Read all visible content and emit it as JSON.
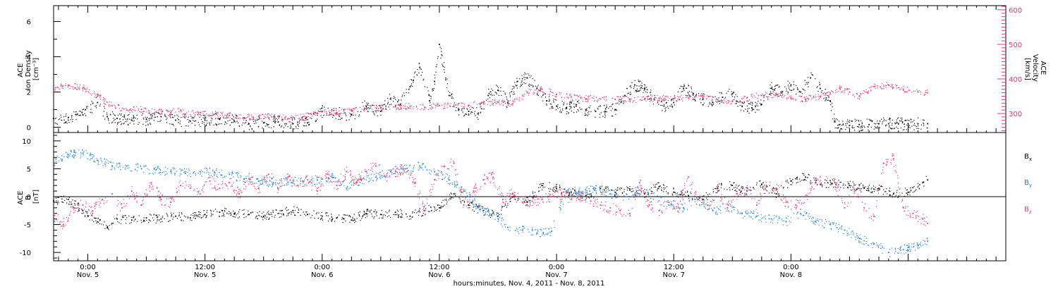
{
  "colors": {
    "density": "#000000",
    "velocity": "#e8386a",
    "bx": "#000000",
    "by": "#1c7fe0",
    "bz": "#e8386a",
    "axis": "#000000"
  },
  "chart_data": [
    {
      "type": "scatter",
      "panel": "top",
      "left_axis_title": [
        "ACE",
        "Ion Density",
        "[cm⁻³]"
      ],
      "right_axis_title": [
        "ACE",
        "Velocity",
        "[km/s]"
      ],
      "left_ylim": [
        -0.3,
        6.9
      ],
      "left_ticks": [
        0,
        2,
        4,
        6
      ],
      "left_tick_labels": [
        "0",
        "2",
        "4",
        "6"
      ],
      "right_ylim": [
        245,
        612
      ],
      "right_ticks": [
        300,
        400,
        500,
        600
      ],
      "right_tick_labels": [
        "300",
        "400",
        "500",
        "600"
      ],
      "xlim_hours": [
        -3.5,
        94
      ],
      "series": [
        {
          "key": "density",
          "axis": "left",
          "x": [
            -3.5,
            -2,
            -0.5,
            1,
            2,
            3,
            4.5,
            6,
            7.5,
            9,
            10.5,
            12,
            13.5,
            15,
            16.5,
            18,
            19.5,
            21,
            22.5,
            24,
            25.5,
            27,
            28.5,
            30,
            31,
            32,
            33,
            34,
            35,
            35.5,
            36,
            37,
            38,
            39,
            40,
            41,
            42,
            43,
            44,
            45,
            46,
            47,
            48,
            49,
            50,
            51,
            52,
            53,
            54,
            55,
            56,
            57,
            58,
            59,
            60,
            61,
            62,
            63,
            64,
            65,
            66,
            67,
            68,
            69,
            70,
            71,
            72,
            73,
            74,
            75,
            76,
            76.5,
            77,
            78,
            79,
            80,
            81,
            82,
            83,
            84,
            85,
            86
          ],
          "y": [
            0.5,
            0.55,
            0.7,
            1.4,
            0.6,
            0.5,
            0.4,
            0.45,
            0.6,
            0.4,
            0.35,
            0.4,
            0.45,
            0.35,
            0.2,
            0.25,
            0.3,
            0.2,
            0.25,
            0.9,
            0.8,
            0.7,
            1.2,
            0.9,
            1.6,
            1.3,
            2.3,
            3.4,
            1.5,
            2.6,
            4.7,
            1.8,
            1.0,
            0.9,
            0.8,
            1.8,
            2.1,
            1.4,
            2.6,
            2.8,
            2.2,
            1.5,
            1.2,
            1.1,
            1.2,
            1.0,
            0.9,
            0.9,
            1.0,
            1.8,
            2.4,
            2.2,
            1.6,
            1.2,
            1.4,
            2.2,
            1.9,
            1.6,
            1.4,
            1.7,
            1.9,
            1.2,
            1.1,
            1.3,
            2.2,
            2.0,
            2.4,
            2.0,
            2.8,
            2.2,
            1.5,
            0.3,
            0.15,
            0.1,
            0.15,
            0.15,
            0.2,
            0.2,
            0.2,
            0.2,
            0.2,
            0.2
          ]
        },
        {
          "key": "velocity",
          "axis": "right",
          "x": [
            -3.5,
            -2,
            -0.5,
            1,
            2.5,
            4,
            5.5,
            7,
            8.5,
            9.5,
            10,
            11.5,
            13,
            14.5,
            16,
            17.5,
            19,
            20.5,
            22,
            23.5,
            24,
            25.5,
            27,
            28.5,
            30,
            31.5,
            33,
            34.5,
            36,
            37.5,
            39,
            40.5,
            42,
            43.5,
            45,
            46.5,
            48,
            49.5,
            51,
            52.5,
            54,
            55.5,
            57,
            58.5,
            60,
            61.5,
            63,
            64.5,
            66,
            67.5,
            69,
            70.5,
            72,
            73.5,
            75,
            76,
            77,
            78,
            79,
            80.5,
            82,
            83.5,
            85,
            86
          ],
          "y": [
            370,
            382,
            374,
            350,
            322,
            310,
            312,
            305,
            302,
            310,
            298,
            303,
            298,
            294,
            288,
            292,
            290,
            285,
            290,
            300,
            305,
            303,
            308,
            314,
            315,
            319,
            321,
            318,
            323,
            320,
            324,
            330,
            332,
            328,
            360,
            370,
            355,
            348,
            343,
            342,
            341,
            340,
            342,
            344,
            343,
            345,
            350,
            340,
            335,
            345,
            352,
            355,
            345,
            342,
            348,
            360,
            372,
            362,
            350,
            378,
            382,
            370,
            362,
            360
          ]
        }
      ]
    },
    {
      "type": "scatter",
      "panel": "bottom",
      "left_axis_title": [
        "ACE",
        "B",
        "[nT]"
      ],
      "ylim": [
        -11.5,
        11.5
      ],
      "ticks": [
        -10,
        -5,
        0,
        5,
        10
      ],
      "tick_labels": [
        "-10",
        "-5",
        "0",
        "5",
        "10"
      ],
      "xlim_hours": [
        -3.5,
        94
      ],
      "series": [
        {
          "key": "bx",
          "name": "B",
          "sub": "x",
          "x": [
            -3.5,
            -2,
            -0.5,
            1,
            2,
            3,
            4.5,
            6,
            7.5,
            9,
            10.5,
            12,
            13.5,
            15,
            16.5,
            18,
            19.5,
            21,
            22.5,
            24,
            25.5,
            27,
            28.5,
            30,
            31.5,
            33,
            34.5,
            36,
            37.5,
            39,
            40.5,
            42,
            43.5,
            45,
            46.5,
            48,
            49.5,
            51,
            52.5,
            54,
            55.5,
            57,
            58.5,
            60,
            61.5,
            63,
            64.5,
            66,
            67.5,
            69,
            70.5,
            72,
            73.5,
            75,
            76.5,
            78,
            79.5,
            81,
            82.5,
            84,
            85.5,
            86
          ],
          "y": [
            -0.8,
            -0.5,
            -2.5,
            -4.5,
            -5.5,
            -4.0,
            -4.2,
            -3.8,
            -4.0,
            -3.5,
            -3.8,
            -3.2,
            -2.8,
            -3.0,
            -3.2,
            -3.5,
            -3.0,
            -2.5,
            -3.2,
            -3.5,
            -3.8,
            -4.2,
            -3.0,
            -3.2,
            -2.8,
            -3.5,
            -2.5,
            -2.0,
            0.5,
            -1.5,
            -2.5,
            -3.5,
            0.5,
            -1.0,
            2.0,
            1.5,
            0.8,
            0.2,
            1.5,
            0.8,
            1.2,
            0.5,
            1.8,
            0.8,
            0.2,
            -0.5,
            1.5,
            2.0,
            1.0,
            2.2,
            0.5,
            2.8,
            3.5,
            2.2,
            2.5,
            2.0,
            1.5,
            1.5,
            0.5,
            0.8,
            2.5,
            3.0
          ]
        },
        {
          "key": "by",
          "name": "B",
          "sub": "y",
          "x": [
            -3.5,
            -2,
            -0.5,
            1,
            2.5,
            4,
            5.5,
            7,
            8.5,
            10,
            11.5,
            13,
            14.5,
            16,
            17.5,
            19,
            20.5,
            22,
            23.5,
            25,
            26.5,
            28,
            29.5,
            31,
            32.5,
            34,
            35.5,
            37,
            38.5,
            40,
            41.5,
            43,
            44.5,
            46,
            47.5,
            49,
            50.5,
            52,
            53.5,
            55,
            56.5,
            58,
            59.5,
            61,
            62.5,
            64,
            65.5,
            67,
            68.5,
            70,
            71.5,
            73,
            74.5,
            76,
            77.5,
            79,
            80.5,
            82,
            83.5,
            85,
            86
          ],
          "y": [
            6.2,
            7.5,
            7.8,
            6.5,
            5.5,
            5.5,
            5.0,
            4.8,
            4.5,
            4.2,
            4.5,
            4.3,
            4.0,
            3.2,
            2.8,
            2.5,
            2.6,
            2.8,
            3.0,
            3.5,
            1.5,
            3.0,
            3.5,
            4.5,
            5.0,
            5.5,
            4.5,
            3.0,
            1.0,
            -2.0,
            -3.0,
            -5.5,
            -6.0,
            -6.5,
            -6.2,
            1.0,
            0.8,
            1.5,
            0.5,
            0.0,
            1.2,
            0.0,
            -1.5,
            -2.0,
            -0.5,
            -2.5,
            -2.0,
            -3.0,
            -3.5,
            -4.0,
            -4.5,
            -3.0,
            -4.5,
            -5.0,
            -6.0,
            -7.5,
            -8.5,
            -10.0,
            -9.5,
            -8.8,
            -8.0
          ]
        },
        {
          "key": "bz",
          "name": "B",
          "sub": "z",
          "x": [
            -3.5,
            -2.5,
            -1.5,
            -0.5,
            0.5,
            1.5,
            2.5,
            3.5,
            4.5,
            5.5,
            6.5,
            7.5,
            8.5,
            9.5,
            10.5,
            11.5,
            12.5,
            13.5,
            14.5,
            15.5,
            16.5,
            17.5,
            18.5,
            19.5,
            20.5,
            21.5,
            22.5,
            23.5,
            24.5,
            25.5,
            26.5,
            27.5,
            28.5,
            29.5,
            30.5,
            31.5,
            32.5,
            33.5,
            34.5,
            35.5,
            36.5,
            37.5,
            38.5,
            39.5,
            40.5,
            41.5,
            42.5,
            43.5,
            44.5,
            45.5,
            46.5,
            47.5,
            48.5,
            49.5,
            50.5,
            51.5,
            52.5,
            53.5,
            54.5,
            55.5,
            56.5,
            57.5,
            58.5,
            59.5,
            60.5,
            61.5,
            62.5,
            63.5,
            64.5,
            65.5,
            66.5,
            67.5,
            68.5,
            69.5,
            70.5,
            71.5,
            72.5,
            73.5,
            74.5,
            75.5,
            76.5,
            77.5,
            78.5,
            79.5,
            80.5,
            81.5,
            82.5,
            83.5,
            84.5,
            85.5,
            86
          ],
          "y": [
            -3.5,
            -5.0,
            -2.0,
            -1.5,
            -2.5,
            -0.5,
            0.5,
            -2.0,
            1.0,
            -1.5,
            2.5,
            -0.5,
            -1.0,
            2.0,
            1.5,
            0.5,
            2.8,
            1.5,
            2.5,
            0.5,
            3.2,
            1.5,
            4.0,
            1.5,
            3.5,
            2.0,
            3.0,
            1.0,
            4.0,
            2.0,
            4.5,
            2.5,
            4.5,
            5.5,
            3.5,
            4.5,
            5.0,
            2.5,
            -2.5,
            3.0,
            5.5,
            6.0,
            -1.5,
            1.0,
            3.0,
            3.5,
            -0.5,
            0.5,
            -1.0,
            -0.8,
            -0.5,
            0.0,
            0.5,
            -0.5,
            0.2,
            -0.8,
            -1.5,
            -2.0,
            -2.5,
            -3.0,
            2.5,
            -1.5,
            -2.5,
            -1.0,
            -2.0,
            3.5,
            -0.5,
            -1.5,
            1.0,
            -2.0,
            0.5,
            1.0,
            -1.5,
            2.0,
            1.5,
            -1.0,
            -1.5,
            0.0,
            2.5,
            3.0,
            2.5,
            -2.0,
            1.0,
            -2.0,
            -3.5,
            6.0,
            6.8,
            -2.0,
            -3.0,
            -4.0,
            -4.8
          ]
        }
      ]
    }
  ],
  "x_axis": {
    "ticks": [
      {
        "hour": 0,
        "time": "0:00",
        "date": "Nov. 5"
      },
      {
        "hour": 12,
        "time": "12:00",
        "date": "Nov. 5"
      },
      {
        "hour": 24,
        "time": "0:00",
        "date": "Nov. 6"
      },
      {
        "hour": 36,
        "time": "12:00",
        "date": "Nov. 6"
      },
      {
        "hour": 48,
        "time": "0:00",
        "date": "Nov. 7"
      },
      {
        "hour": 60,
        "time": "12:00",
        "date": "Nov. 7"
      },
      {
        "hour": 72,
        "time": "0:00",
        "date": "Nov. 8"
      }
    ],
    "title": "hours:minutes, Nov.  4, 2011 - Nov.  8, 2011"
  }
}
